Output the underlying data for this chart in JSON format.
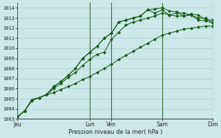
{
  "title": "",
  "xlabel": "Pression niveau de la mer( hPa )",
  "bg_color": "#cce8e8",
  "grid_color": "#aacccc",
  "line_color": "#1a5c1a",
  "marker": "D",
  "marker_size": 2.2,
  "ylim": [
    1003,
    1014.5
  ],
  "xlim": [
    0,
    27
  ],
  "xtick_labels": [
    "Jeu",
    "Lun",
    "Ven",
    "Sam",
    "Dim"
  ],
  "xtick_pos": [
    0,
    10,
    13,
    20,
    27
  ],
  "ytick_vals": [
    1003,
    1004,
    1005,
    1006,
    1007,
    1008,
    1009,
    1010,
    1011,
    1012,
    1013,
    1014
  ],
  "vline_color": "#336633",
  "vlines": [
    0,
    10,
    13,
    20,
    27
  ],
  "series": [
    [
      1003.2,
      1003.8,
      1004.8,
      1005.1,
      1005.4,
      1005.6,
      1005.9,
      1006.2,
      1006.5,
      1006.9,
      1007.2,
      1007.6,
      1008.0,
      1008.4,
      1008.9,
      1009.3,
      1009.7,
      1010.1,
      1010.5,
      1010.9,
      1011.3,
      1011.5,
      1011.7,
      1011.9,
      1012.0,
      1012.1,
      1012.2,
      1012.2
    ],
    [
      1003.2,
      1003.8,
      1004.9,
      1005.1,
      1005.4,
      1006.0,
      1006.5,
      1007.1,
      1007.6,
      1008.3,
      1008.9,
      1009.4,
      1009.6,
      1010.9,
      1011.6,
      1012.3,
      1012.6,
      1012.8,
      1013.0,
      1013.2,
      1013.5,
      1013.3,
      1013.2,
      1013.2,
      1013.3,
      1012.8,
      1012.7,
      1012.5
    ],
    [
      1003.2,
      1003.8,
      1004.9,
      1005.1,
      1005.4,
      1006.2,
      1006.7,
      1007.3,
      1008.0,
      1009.0,
      1009.6,
      1010.2,
      1011.0,
      1011.5,
      1012.6,
      1012.8,
      1013.0,
      1013.2,
      1013.8,
      1013.9,
      1014.0,
      1013.7,
      1013.6,
      1013.2,
      1013.4,
      1013.3,
      1012.8,
      1012.8
    ],
    [
      1003.2,
      1003.8,
      1004.9,
      1005.1,
      1005.4,
      1006.2,
      1006.7,
      1007.3,
      1008.0,
      1009.0,
      1009.6,
      1010.2,
      1011.0,
      1011.5,
      1012.6,
      1012.8,
      1013.0,
      1013.2,
      1013.8,
      1013.5,
      1013.8,
      1013.3,
      1013.5,
      1013.5,
      1013.3,
      1013.0,
      1013.0,
      1012.5
    ]
  ]
}
